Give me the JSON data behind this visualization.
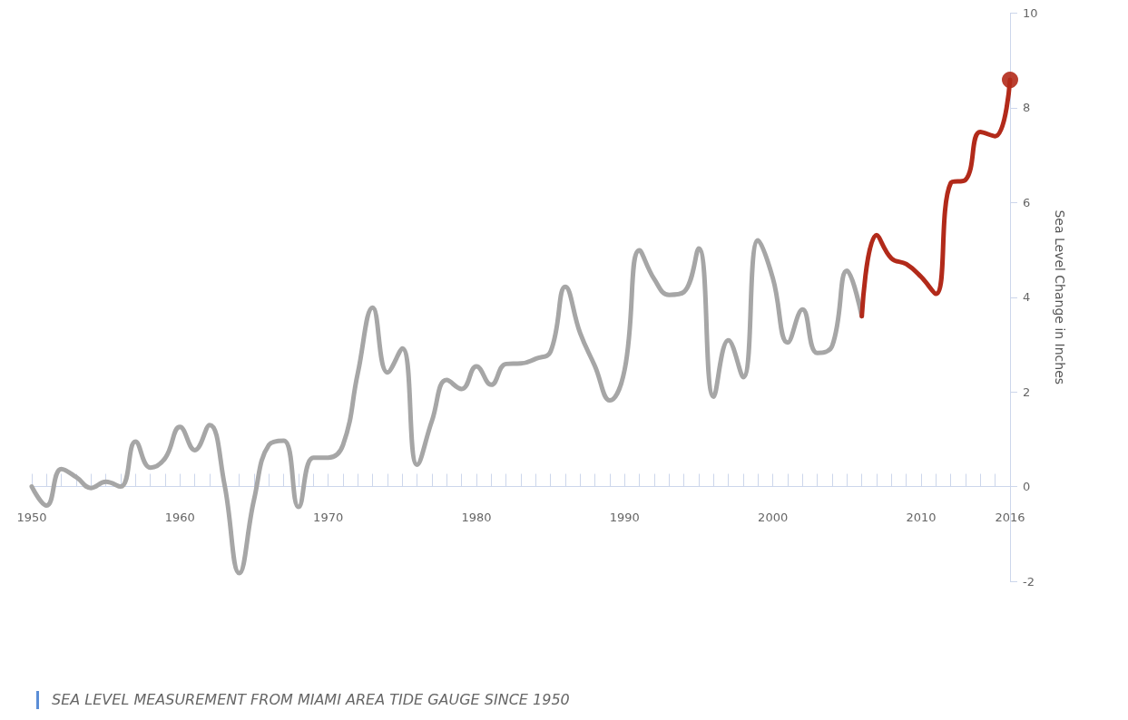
{
  "chart_data": {
    "type": "line",
    "ylabel": "Sea Level Change in Inches",
    "annotations": [
      "SEA LEVEL MEASUREMENT FROM MIAMI AREA TIDE GAUGE SINCE 1950"
    ],
    "xlim": [
      1950,
      2016
    ],
    "ylim": [
      -2,
      10
    ],
    "yticks": [
      -2,
      0,
      2,
      4,
      6,
      8,
      10
    ],
    "xticks": [
      1950,
      {
        "value": 1951,
        "label": null
      },
      {
        "value": 1952,
        "label": null
      },
      {
        "value": 1953,
        "label": null
      },
      {
        "value": 1954,
        "label": null
      },
      {
        "value": 1955,
        "label": null
      },
      {
        "value": 1956,
        "label": null
      },
      {
        "value": 1957,
        "label": null
      },
      {
        "value": 1958,
        "label": null
      },
      {
        "value": 1959,
        "label": null
      },
      1960,
      {
        "value": 1961,
        "label": null
      },
      {
        "value": 1962,
        "label": null
      },
      {
        "value": 1963,
        "label": null
      },
      {
        "value": 1964,
        "label": null
      },
      {
        "value": 1965,
        "label": null
      },
      {
        "value": 1966,
        "label": null
      },
      {
        "value": 1967,
        "label": null
      },
      {
        "value": 1968,
        "label": null
      },
      {
        "value": 1969,
        "label": null
      },
      1970,
      {
        "value": 1971,
        "label": null
      },
      {
        "value": 1972,
        "label": null
      },
      {
        "value": 1973,
        "label": null
      },
      {
        "value": 1974,
        "label": null
      },
      {
        "value": 1975,
        "label": null
      },
      {
        "value": 1976,
        "label": null
      },
      {
        "value": 1977,
        "label": null
      },
      {
        "value": 1978,
        "label": null
      },
      {
        "value": 1979,
        "label": null
      },
      1980,
      {
        "value": 1981,
        "label": null
      },
      {
        "value": 1982,
        "label": null
      },
      {
        "value": 1983,
        "label": null
      },
      {
        "value": 1984,
        "label": null
      },
      {
        "value": 1985,
        "label": null
      },
      {
        "value": 1986,
        "label": null
      },
      {
        "value": 1987,
        "label": null
      },
      {
        "value": 1988,
        "label": null
      },
      {
        "value": 1989,
        "label": null
      },
      1990,
      {
        "value": 1991,
        "label": null
      },
      {
        "value": 1992,
        "label": null
      },
      {
        "value": 1993,
        "label": null
      },
      {
        "value": 1994,
        "label": null
      },
      {
        "value": 1995,
        "label": null
      },
      {
        "value": 1996,
        "label": null
      },
      {
        "value": 1997,
        "label": null
      },
      {
        "value": 1998,
        "label": null
      },
      {
        "value": 1999,
        "label": null
      },
      2000,
      {
        "value": 2001,
        "label": null
      },
      {
        "value": 2002,
        "label": null
      },
      {
        "value": 2003,
        "label": null
      },
      {
        "value": 2004,
        "label": null
      },
      {
        "value": 2005,
        "label": null
      },
      {
        "value": 2006,
        "label": null
      },
      {
        "value": 2007,
        "label": null
      },
      {
        "value": 2008,
        "label": null
      },
      {
        "value": 2009,
        "label": null
      },
      2010,
      {
        "value": 2011,
        "label": null
      },
      {
        "value": 2012,
        "label": null
      },
      {
        "value": 2013,
        "label": null
      },
      {
        "value": 2014,
        "label": null
      },
      {
        "value": 2015,
        "label": null
      },
      2016
    ],
    "grid": false,
    "marker": "none",
    "line_style": "solid",
    "series": [
      {
        "color": "#a6a6a6",
        "x": [
          1950,
          1951,
          1952,
          1953,
          1954,
          1955,
          1956,
          1957,
          1958,
          1959,
          1960,
          1961,
          1962,
          1963,
          1964,
          1965,
          1966,
          1967,
          1968,
          1969,
          1970,
          1971,
          1972,
          1973,
          1974,
          1975,
          1976,
          1977,
          1978,
          1979,
          1980,
          1981,
          1982,
          1983,
          1984,
          1985,
          1986,
          1987,
          1988,
          1989,
          1990,
          1991,
          1992,
          1993,
          1994,
          1995,
          1996,
          1997,
          1998,
          1999,
          2000,
          2001,
          2002,
          2003,
          2004,
          2005,
          2006
        ],
        "values": [
          0,
          -0.4,
          0.37,
          0.2,
          -0.03,
          0.1,
          0,
          0.95,
          0.4,
          0.6,
          1.26,
          0.77,
          1.3,
          0.05,
          -1.83,
          -0.27,
          0.88,
          0.97,
          -0.43,
          0.61,
          0.61,
          0.88,
          2.4,
          3.78,
          2.41,
          2.92,
          0.46,
          1.39,
          2.25,
          2.06,
          2.54,
          2.15,
          2.59,
          2.6,
          2.7,
          2.85,
          4.22,
          3.24,
          2.54,
          1.82,
          2.47,
          4.99,
          4.38,
          4.05,
          4.11,
          5.03,
          1.9,
          3.09,
          2.31,
          5.2,
          4.4,
          3.04,
          3.74,
          2.82,
          2.97,
          4.56,
          3.6
        ]
      },
      {
        "color": "#b22a1a",
        "x": [
          2006,
          2007,
          2008,
          2009,
          2010,
          2011,
          2012,
          2013,
          2014,
          2015,
          2016
        ],
        "values": [
          3.6,
          5.31,
          4.82,
          4.7,
          4.43,
          4.07,
          6.41,
          6.48,
          7.49,
          7.4,
          8.59
        ]
      },
      {
        "type": "scatter",
        "marker": "circle",
        "color": "#b22a1a",
        "x": [
          2016
        ],
        "values": [
          8.59
        ]
      }
    ]
  }
}
